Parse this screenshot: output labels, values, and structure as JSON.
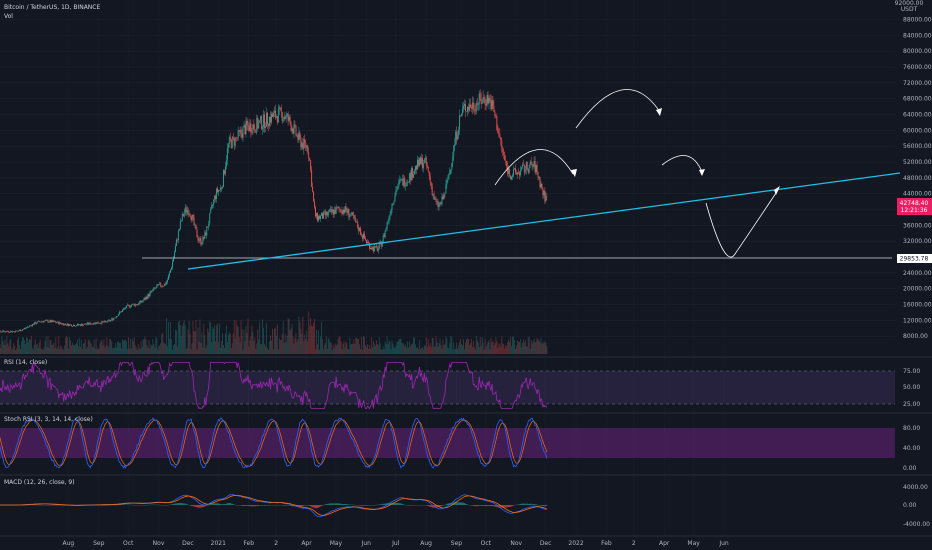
{
  "header": {
    "symbol": "Bitcoin / TetherUS, 1D, BINANCE",
    "vol": "Vol"
  },
  "colors": {
    "bg": "#131722",
    "up": "#26a69a",
    "down": "#ef5350",
    "trend": "#22c0e8",
    "rsi": "#9c27b0",
    "stoch_k": "#2962ff",
    "stoch_d": "#ff6d00",
    "macd": "#2962ff",
    "signal": "#ff6d00",
    "price_tag": "#e91e63"
  },
  "price_panel": {
    "axis_unit": "USDT",
    "axis_top": "92000.00",
    "ticks": [
      "88000.00",
      "84000.00",
      "80000.00",
      "76000.00",
      "72000.00",
      "68000.00",
      "64000.00",
      "60000.00",
      "56000.00",
      "52000.00",
      "48000.00",
      "44000.00",
      "40000.00",
      "36000.00",
      "32000.00",
      "28000.00",
      "24000.00",
      "20000.00",
      "16000.00",
      "12000.00",
      "8000.00"
    ],
    "current_price": "42748.40",
    "countdown": "12:21:36",
    "support_level": "29853.78"
  },
  "rsi": {
    "title": "RSI (14, close)",
    "ticks": [
      "75.00",
      "50.00",
      "25.00"
    ]
  },
  "stoch": {
    "title": "Stoch RSI (3, 3, 14, 14, close)",
    "ticks": [
      "80.00",
      "40.00",
      "0.00"
    ]
  },
  "macd": {
    "title": "MACD (12, 26, close, 9)",
    "ticks": [
      "4000.00",
      "0.00",
      "-4000.00"
    ]
  },
  "time_axis": [
    "Aug",
    "Sep",
    "Oct",
    "Nov",
    "Dec",
    "2021",
    "Feb",
    "2",
    "Apr",
    "May",
    "Jun",
    "Jul",
    "Aug",
    "Sep",
    "Oct",
    "Nov",
    "Dec",
    "2022",
    "Feb",
    "2",
    "Apr",
    "May",
    "Jun"
  ],
  "chart_data": {
    "type": "candlestick",
    "ylabel": "USDT",
    "ylim": [
      6000,
      92000
    ],
    "trendline": {
      "from": [
        "2020-11",
        28000
      ],
      "to": [
        "2022-06",
        52000
      ]
    },
    "support_line": 29853.78,
    "close_series": [
      [
        "2020-07-15",
        9200
      ],
      [
        "2020-08-15",
        11800
      ],
      [
        "2020-09-15",
        10800
      ],
      [
        "2020-10-15",
        11500
      ],
      [
        "2020-11-15",
        16000
      ],
      [
        "2020-12-15",
        21000
      ],
      [
        "2021-01-08",
        40000
      ],
      [
        "2021-01-22",
        32000
      ],
      [
        "2021-02-10",
        45000
      ],
      [
        "2021-02-21",
        57000
      ],
      [
        "2021-03-13",
        61000
      ],
      [
        "2021-04-14",
        64000
      ],
      [
        "2021-05-10",
        56000
      ],
      [
        "2021-05-20",
        38000
      ],
      [
        "2021-06-15",
        40000
      ],
      [
        "2021-07-20",
        30000
      ],
      [
        "2021-08-15",
        47000
      ],
      [
        "2021-09-06",
        52000
      ],
      [
        "2021-09-21",
        41000
      ],
      [
        "2021-10-20",
        66000
      ],
      [
        "2021-11-10",
        68000
      ],
      [
        "2021-12-05",
        49000
      ],
      [
        "2021-12-27",
        51000
      ],
      [
        "2022-01-10",
        42748
      ]
    ]
  }
}
